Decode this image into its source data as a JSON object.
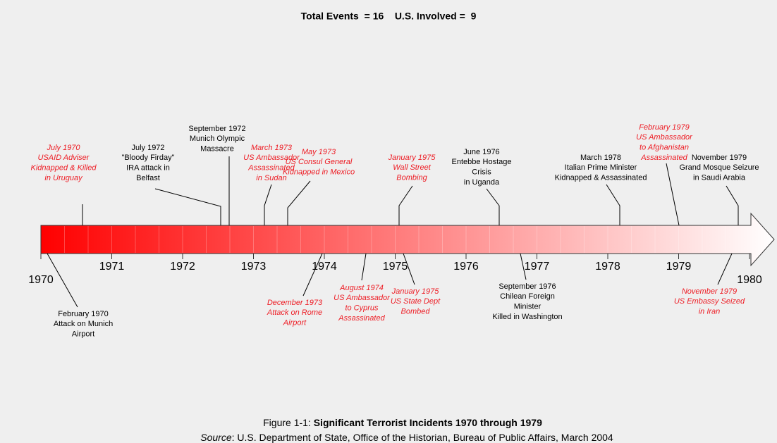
{
  "header": {
    "title": "Total Events  = 16    U.S. Involved =  9"
  },
  "years": [
    "1970",
    "1971",
    "1972",
    "1973",
    "1974",
    "1975",
    "1976",
    "1977",
    "1978",
    "1979",
    "1980"
  ],
  "events": [
    {
      "lines": [
        "July 1970",
        "USAID Adviser",
        "Kidnapped & Killed",
        "in Uruguay"
      ],
      "us_involved": true
    },
    {
      "lines": [
        "July 1972",
        "\"Bloody Firday\"",
        "IRA attack in",
        "Belfast"
      ],
      "us_involved": false
    },
    {
      "lines": [
        "September 1972",
        "Munich Olympic",
        "Massacre"
      ],
      "us_involved": false
    },
    {
      "lines": [
        "March 1973",
        "US Ambassador",
        "Assassinated",
        "in Sudan"
      ],
      "us_involved": true
    },
    {
      "lines": [
        "May 1973",
        "US Consul General",
        "Kidnapped in Mexico"
      ],
      "us_involved": true
    },
    {
      "lines": [
        "January 1975",
        "Wall Street",
        "Bombing"
      ],
      "us_involved": true
    },
    {
      "lines": [
        "June 1976",
        "Entebbe Hostage",
        "Crisis",
        "in Uganda"
      ],
      "us_involved": false
    },
    {
      "lines": [
        "March 1978",
        "Italian Prime Minister",
        "Kidnapped & Assassinated"
      ],
      "us_involved": false
    },
    {
      "lines": [
        "February 1979",
        "US Ambassador",
        "to Afghanistan",
        "Assassinated"
      ],
      "us_involved": true
    },
    {
      "lines": [
        "November 1979",
        "Grand Mosque Seizure",
        "in Saudi Arabia"
      ],
      "us_involved": false
    },
    {
      "lines": [
        "February 1970",
        "Attack on Munich",
        "Airport"
      ],
      "us_involved": false
    },
    {
      "lines": [
        "December 1973",
        "Attack on Rome",
        "Airport"
      ],
      "us_involved": true
    },
    {
      "lines": [
        "August 1974",
        "US Ambassador",
        "to Cyprus",
        "Assassinated"
      ],
      "us_involved": true
    },
    {
      "lines": [
        "January 1975",
        "US State Dept",
        "Bombed"
      ],
      "us_involved": true
    },
    {
      "lines": [
        "September 1976",
        "Chilean Foreign",
        "Minister",
        "Killed in Washington"
      ],
      "us_involved": false
    },
    {
      "lines": [
        "November 1979",
        "US Embassy Seized",
        "in Iran"
      ],
      "us_involved": true
    }
  ],
  "caption": {
    "prefix": "Figure 1-1:",
    "title": "Significant Terrorist Incidents 1970 through 1979"
  },
  "source": {
    "label": "Source",
    "text": ": U.S. Department of State, Office of the Historian, Bureau of Public Affairs, March 2004"
  }
}
